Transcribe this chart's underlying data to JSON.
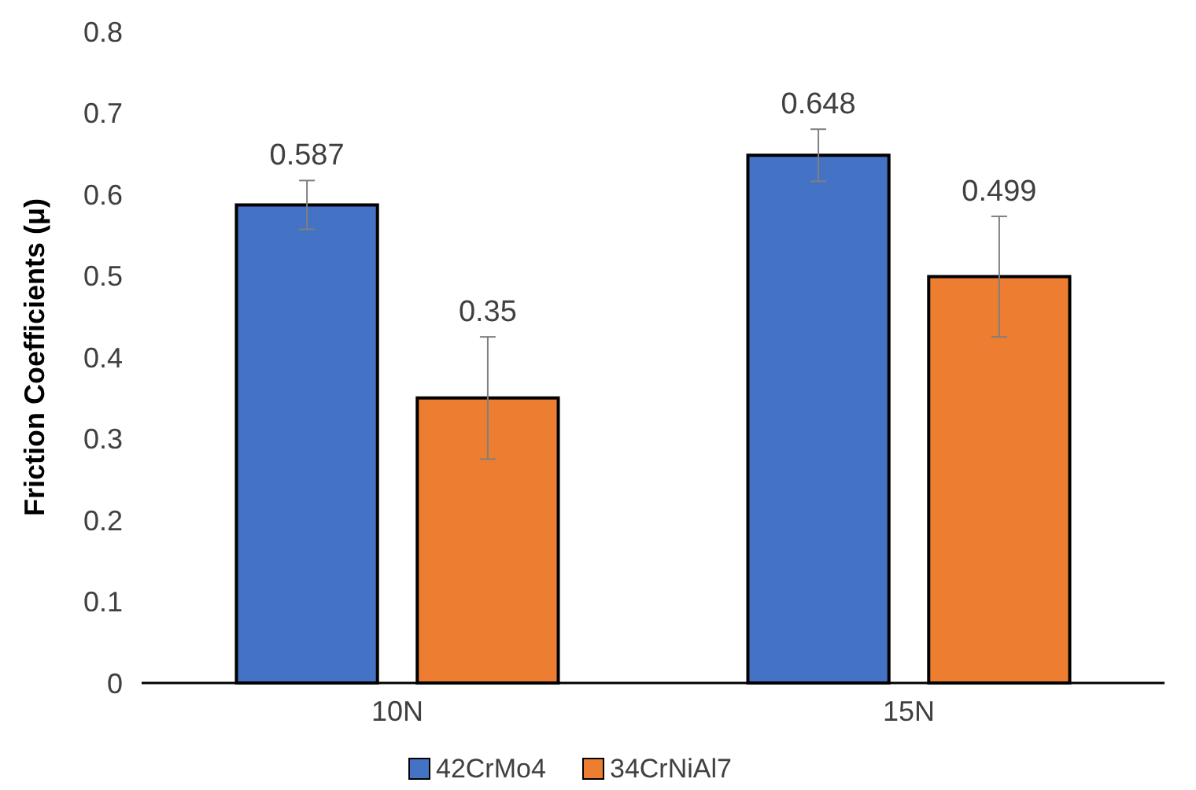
{
  "chart_data": {
    "type": "bar",
    "ylabel": "Friction Coefficients (μ)",
    "categories": [
      "10N",
      "15N"
    ],
    "series": [
      {
        "name": "42CrMo4",
        "color": "#4472c4",
        "values": [
          0.587,
          0.648
        ],
        "errors": [
          0.03,
          0.032
        ]
      },
      {
        "name": "34CrNiAl7",
        "color": "#ed7d31",
        "values": [
          0.35,
          0.499
        ],
        "errors": [
          0.075,
          0.074
        ]
      }
    ],
    "ylim": [
      0,
      0.8
    ],
    "yticks": [
      {
        "value": 0,
        "label": "0"
      },
      {
        "value": 0.1,
        "label": "0.1"
      },
      {
        "value": 0.2,
        "label": "0.2"
      },
      {
        "value": 0.3,
        "label": "0.3"
      },
      {
        "value": 0.4,
        "label": "0.4"
      },
      {
        "value": 0.5,
        "label": "0.5"
      },
      {
        "value": 0.6,
        "label": "0.6"
      },
      {
        "value": 0.7,
        "label": "0.7"
      },
      {
        "value": 0.8,
        "label": "0.8"
      }
    ],
    "data_labels": true,
    "grid": false,
    "legend": "bottom"
  }
}
